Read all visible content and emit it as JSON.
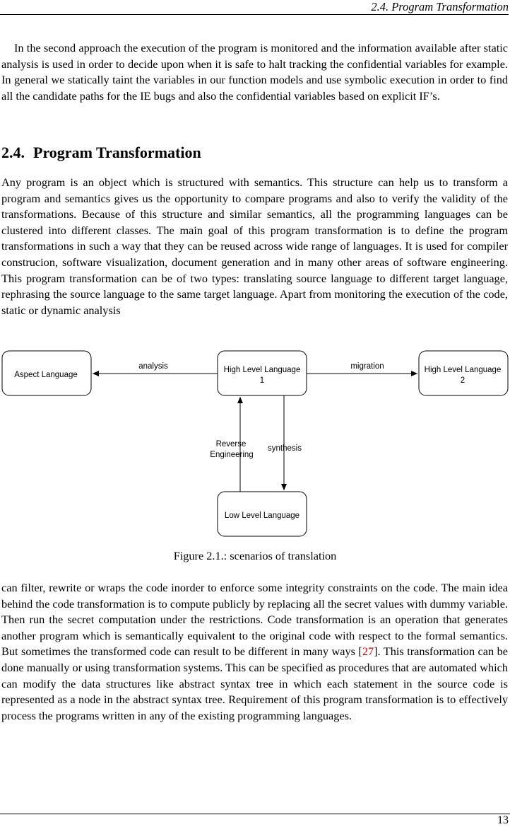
{
  "running_header": "2.4.  Program Transformation",
  "paragraph_1": "In the second approach the execution of the program is monitored and the information available after static analysis is used in order to decide upon when it is safe to halt tracking the confidential variables for example.  In general we statically taint the variables in our function models and use symbolic execution in order to find all the candidate paths for the IE bugs and also the confidential variables based on explicit IF’s.",
  "section": {
    "number": "2.4.",
    "title": "Program Transformation"
  },
  "paragraph_2": "Any program is an object which is structured with semantics.  This structure can help us to transform a program and semantics gives us the opportunity to compare programs and also to verify the validity of the transformations.  Because of this structure and similar semantics, all the programming languages can be clustered into different classes.  The main goal of this program transformation is to define the program transformations in such a way that they can be reused across wide range of languages.  It is used for compiler construcion, software visualization, document generation and in many other areas of software engineering.  This program transformation can be of two types:  translating source language to different target language, rephrasing the source language to the same target language.  Apart from monitoring the execution of the code, static or dynamic analysis",
  "figure": {
    "nodes": {
      "aspect": "Aspect Language",
      "high1_line1": "High Level Language",
      "high1_line2": "1",
      "high2_line1": "High Level Language",
      "high2_line2": "2",
      "low": "Low Level Language"
    },
    "edges": {
      "analysis": "analysis",
      "migration": "migration",
      "reverse_line1": "Reverse",
      "reverse_line2": "Engineering",
      "synthesis": "synthesis"
    },
    "caption": "Figure 2.1.: scenarios of translation"
  },
  "paragraph_3": {
    "before_cite": "can filter, rewrite or wraps the code inorder to enforce some integrity constraints on the code.  The main idea behind the code transformation is to compute publicly by replacing all the secret values with dummy variable.  Then run the secret computation under the restrictions.  Code transformation is an operation that generates another program which is semantically equivalent to the original code with respect to the formal semantics.  But sometimes the transformed code can result to be different in many ways [",
    "cite": "27",
    "after_cite": "].  This transformation can be done manually or using transformation systems. This can be specified as procedures that are automated which can modify the data structures like abstract syntax tree in which each statement in the source code is represented as a node in the abstract syntax tree. Requirement of this program transformation is to effectively process the programs written in any of the existing programming languages."
  },
  "page_number": "13"
}
